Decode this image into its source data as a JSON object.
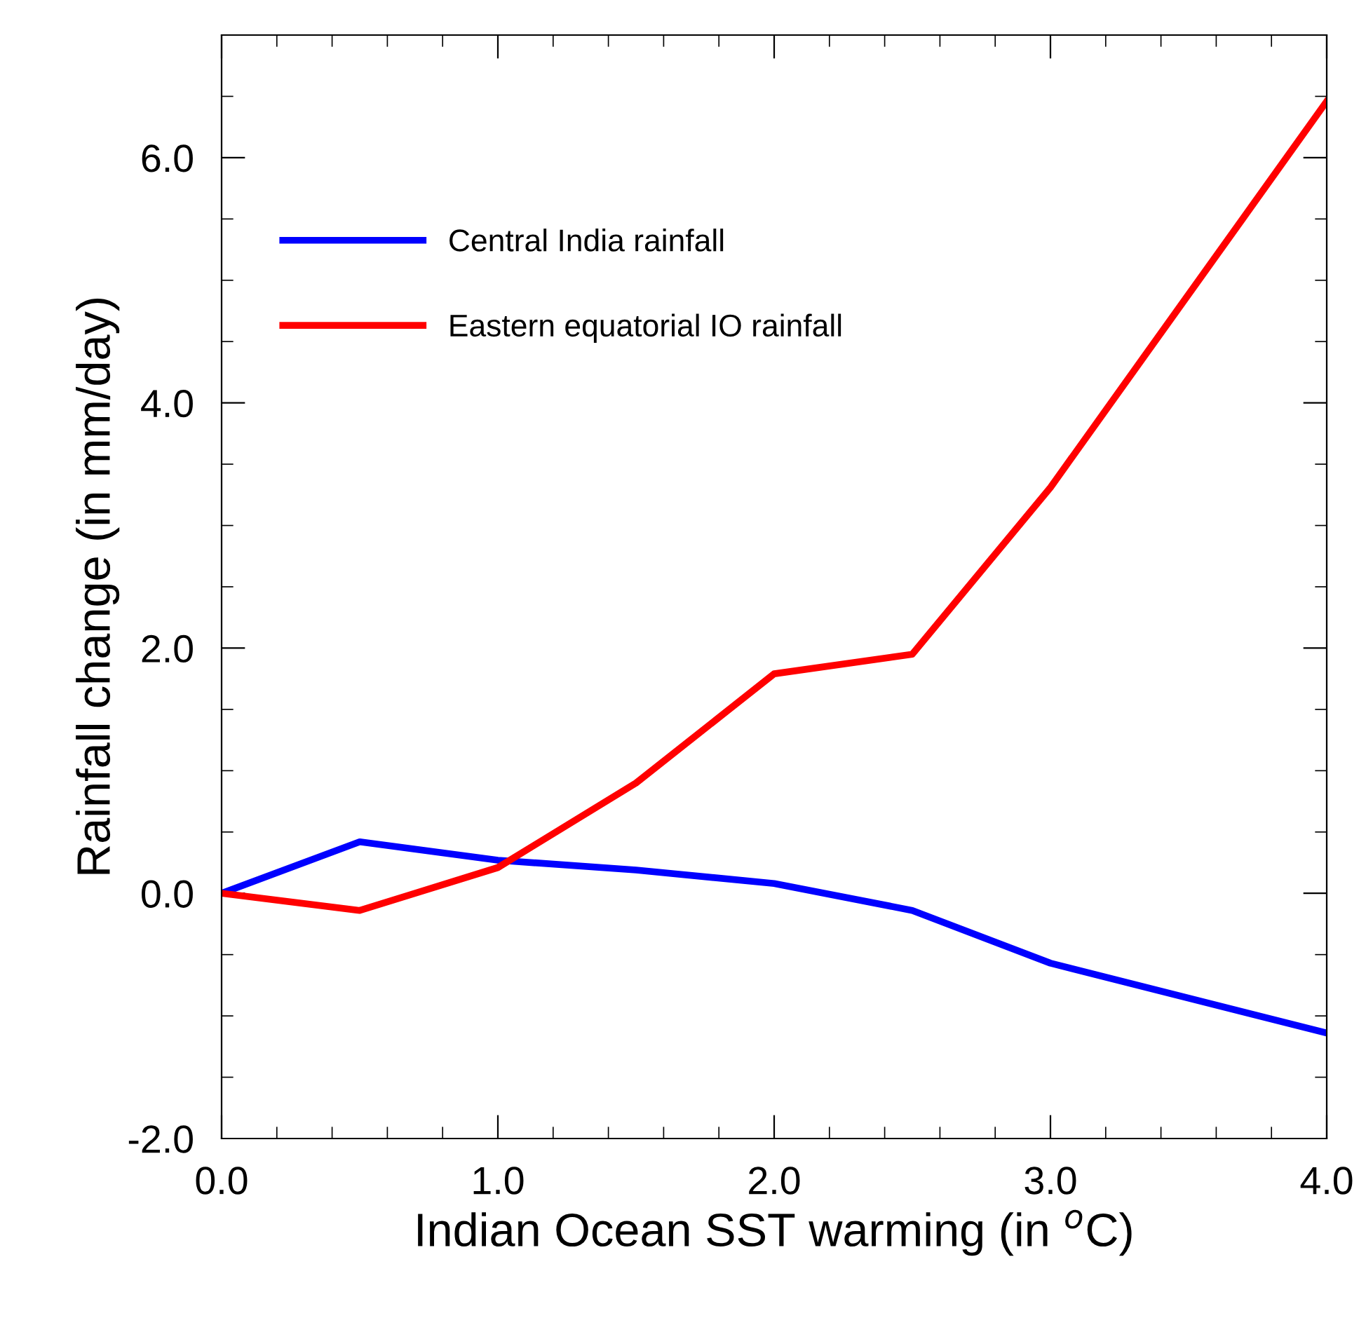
{
  "chart_data": {
    "type": "line",
    "xlabel": "Indian Ocean SST warming (in $^{o}$C)",
    "ylabel": "Rainfall change (in mm/day)",
    "x": [
      0,
      0.5,
      1.0,
      1.5,
      2.0,
      2.5,
      3.0,
      4.0
    ],
    "series": [
      {
        "name": "Central India rainfall",
        "color": "#0000ff",
        "values": [
          0,
          0.42,
          0.27,
          0.19,
          0.08,
          -0.14,
          -0.57,
          -1.14
        ]
      },
      {
        "name": "Eastern equatorial IO rainfall",
        "color": "#ff0000",
        "values": [
          0,
          -0.14,
          0.21,
          0.9,
          1.79,
          1.95,
          3.31,
          6.46
        ]
      }
    ],
    "xlim": [
      0,
      4.0
    ],
    "ylim": [
      -2.0,
      7.0
    ],
    "xticks": [
      {
        "value": 0,
        "label": "0.0"
      },
      {
        "value": 1,
        "label": "1.0"
      },
      {
        "value": 2,
        "label": "2.0"
      },
      {
        "value": 3,
        "label": "3.0"
      },
      {
        "value": 4,
        "label": "4.0"
      }
    ],
    "yticks": [
      {
        "value": -2,
        "label": "-2.0"
      },
      {
        "value": 0,
        "label": "0.0"
      },
      {
        "value": 2,
        "label": "2.0"
      },
      {
        "value": 4,
        "label": "4.0"
      },
      {
        "value": 6,
        "label": "6.0"
      }
    ],
    "grid": false,
    "legend": "top left",
    "marker": "none",
    "line_style": "solid"
  }
}
